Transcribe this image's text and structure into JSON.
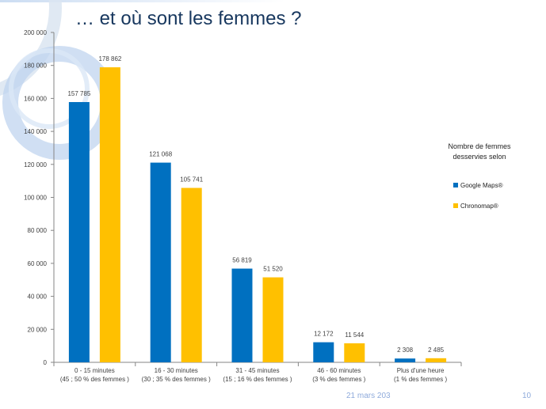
{
  "title": "… et où sont les femmes ?",
  "footer": {
    "date": "21 mars 203",
    "page": "10"
  },
  "colors": {
    "series1": "#0070c0",
    "series2": "#ffc000",
    "title": "#17375e"
  },
  "chart_data": {
    "type": "bar",
    "categories": [
      [
        "0 - 15 minutes",
        "(45 ; 50 % des femmes )"
      ],
      [
        "16 - 30 minutes",
        "(30 ; 35 % des femmes )"
      ],
      [
        "31 - 45 minutes",
        "(15 ; 16 % des femmes )"
      ],
      [
        "46 - 60 minutes",
        "(3 % des femmes )"
      ],
      [
        "Plus d'une heure",
        "(1 % des femmes )"
      ]
    ],
    "series": [
      {
        "name": "Google Maps®",
        "color": "#0070c0",
        "values": [
          157785,
          121068,
          56819,
          12172,
          2308
        ],
        "labels": [
          "157 785",
          "121 068",
          "56 819",
          "12 172",
          "2 308"
        ]
      },
      {
        "name": "Chronomap®",
        "color": "#ffc000",
        "values": [
          178862,
          105741,
          51520,
          11544,
          2485
        ],
        "labels": [
          "178 862",
          "105 741",
          "51 520",
          "11 544",
          "2 485"
        ]
      }
    ],
    "ylim": [
      0,
      200000
    ],
    "yticks": [
      0,
      20000,
      40000,
      60000,
      80000,
      100000,
      120000,
      140000,
      160000,
      180000,
      200000
    ],
    "ytick_labels": [
      "0",
      "20 000",
      "40 000",
      "60 000",
      "80 000",
      "100 000",
      "120 000",
      "140 000",
      "160 000",
      "180 000",
      "200 000"
    ],
    "legend_title": [
      "Nombre de femmes",
      "desservies selon"
    ],
    "legend_position": "right"
  }
}
